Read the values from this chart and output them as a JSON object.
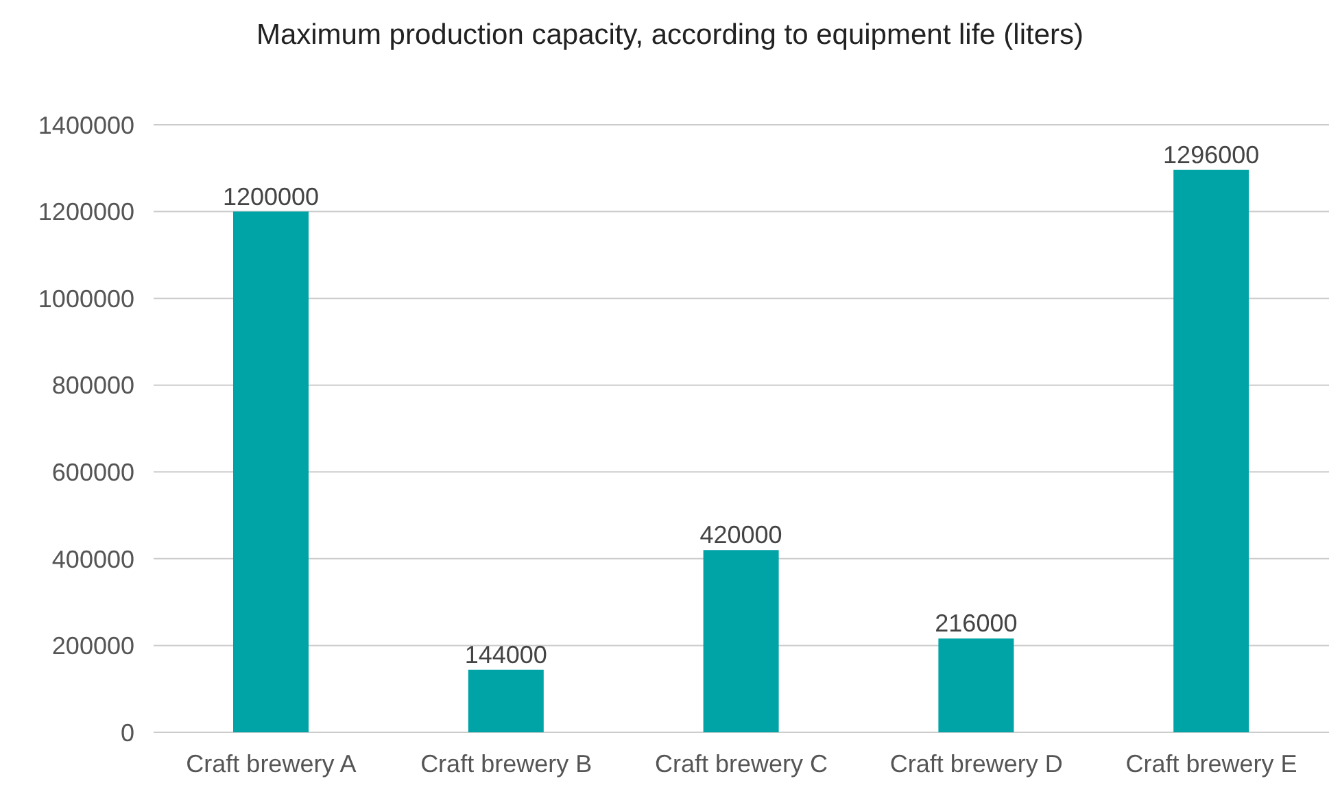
{
  "chart_data": {
    "type": "bar",
    "title": "Maximum production capacity, according to equipment life (liters)",
    "categories": [
      "Craft brewery A",
      "Craft brewery B",
      "Craft brewery C",
      "Craft brewery D",
      "Craft brewery E"
    ],
    "values": [
      1200000,
      144000,
      420000,
      216000,
      1296000
    ],
    "color": "#00a3a6",
    "ylim": [
      0,
      1400000
    ],
    "yticks": [
      0,
      200000,
      400000,
      600000,
      800000,
      1000000,
      1200000,
      1400000
    ],
    "grid": "y",
    "data_labels": true
  }
}
